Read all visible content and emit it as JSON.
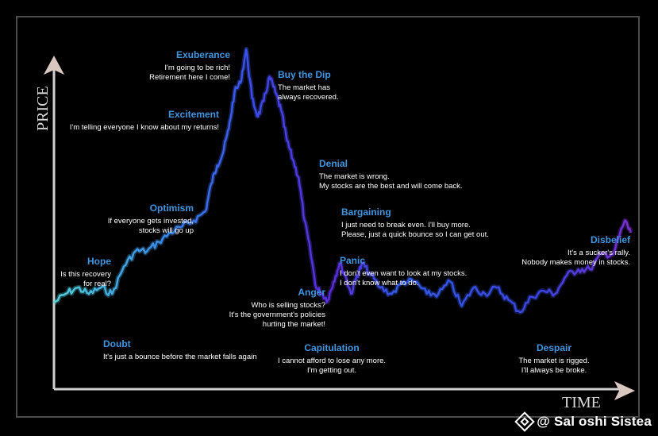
{
  "chart_data": {
    "type": "line",
    "title": "",
    "xlabel": "TIME",
    "ylabel": "PRICE",
    "x_range": [
      0,
      100
    ],
    "y_range": [
      0,
      100
    ],
    "grid": false,
    "legend": "none",
    "series": [
      {
        "x": [
          0,
          2,
          4,
          6,
          8,
          10,
          12,
          14,
          16,
          18,
          20,
          22,
          24,
          26,
          27,
          28,
          29,
          30,
          31,
          32,
          33,
          34,
          35,
          36,
          37,
          38,
          39,
          40,
          41,
          42,
          43,
          44,
          45,
          46,
          47,
          48,
          49,
          50,
          51,
          52,
          53,
          54,
          56,
          58,
          60,
          62,
          64,
          66,
          68,
          70,
          72,
          74,
          76,
          78,
          80,
          82,
          84,
          86,
          88,
          90,
          92,
          94,
          96,
          98,
          99
        ],
        "values": [
          17,
          20,
          22,
          20,
          22,
          20,
          29,
          34,
          34,
          37,
          40,
          42,
          44,
          47,
          56,
          62,
          66,
          74,
          86,
          89,
          100,
          84,
          78,
          83,
          91,
          86,
          80,
          70,
          64,
          58,
          44,
          34,
          22,
          20,
          18,
          24,
          30,
          26,
          20,
          26,
          30,
          27,
          22,
          20,
          24,
          24,
          20,
          20,
          24,
          16,
          22,
          20,
          22,
          18,
          14,
          19,
          21,
          20,
          26,
          28,
          28,
          33,
          33,
          44,
          40
        ]
      }
    ],
    "color_gradient": [
      "#4fd0d8",
      "#3a7ee6",
      "#3b3be8",
      "#5a2cd8",
      "#7a2fd0"
    ],
    "annotations": [
      {
        "x": 36,
        "y": 54,
        "title": "Doubt",
        "lines": [
          "It's just a bounce before the market falls again"
        ]
      },
      {
        "x": 15,
        "y": 41,
        "title": "Hope",
        "lines": [
          "Is this recovery",
          "for real?"
        ]
      },
      {
        "x": 26,
        "y": 60,
        "title": "Optimism",
        "lines": [
          "If everyone gets invested,",
          "stocks will go up"
        ]
      },
      {
        "x": 32,
        "y": 86,
        "title": "Excitement",
        "lines": [
          "I'm telling everyone I know about my returns!"
        ]
      },
      {
        "x": 33,
        "y": 99,
        "title": "Exuberance",
        "lines": [
          "I'm going to be rich!",
          "Retirement here I come!"
        ]
      },
      {
        "x": 45,
        "y": 92,
        "title": "Buy the Dip",
        "lines": [
          "The market has",
          "always recovered."
        ]
      },
      {
        "x": 48,
        "y": 69,
        "title": "Denial",
        "lines": [
          "The market is wrong.",
          "My stocks are the best and will come back."
        ]
      },
      {
        "x": 50,
        "y": 56,
        "title": "Bargaining",
        "lines": [
          "I just need to break even. I'll buy more.",
          "Please, just a quick bounce so I can get out."
        ]
      },
      {
        "x": 52,
        "y": 45,
        "title": "Panic",
        "lines": [
          "I don't even want to look at my stocks.",
          "I don't know what to do."
        ]
      },
      {
        "x": 44,
        "y": 35,
        "title": "Anger",
        "lines": [
          "Who is selling stocks?",
          "It's the government's policies",
          "hurting the market!"
        ]
      },
      {
        "x": 53,
        "y": 13,
        "title": "Capitulation",
        "lines": [
          "I cannot afford to lose any more.",
          "I'm getting out."
        ]
      },
      {
        "x": 88,
        "y": 13,
        "title": "Despair",
        "lines": [
          "The market is rigged.",
          "I'll always be broke."
        ]
      },
      {
        "x": 98,
        "y": 48,
        "title": "Disbelief",
        "lines": [
          "It's a sucker's rally.",
          "Nobody makes money in stocks."
        ]
      }
    ]
  },
  "watermark": {
    "text": "@ Sal oshi Sistea",
    "icon": "diamond-logo-icon"
  }
}
